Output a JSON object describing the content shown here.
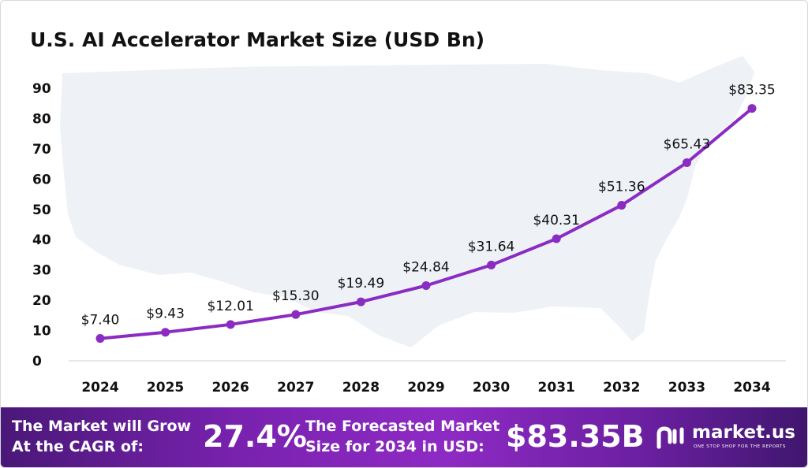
{
  "chart_data": {
    "type": "line",
    "title": "U.S. AI Accelerator Market Size (USD Bn)",
    "xlabel": "",
    "ylabel": "",
    "x": [
      "2024",
      "2025",
      "2026",
      "2027",
      "2028",
      "2029",
      "2030",
      "2031",
      "2032",
      "2033",
      "2034"
    ],
    "values": [
      7.4,
      9.43,
      12.01,
      15.3,
      19.49,
      24.84,
      31.64,
      40.31,
      51.36,
      65.43,
      83.35
    ],
    "data_labels": [
      "$7.40",
      "$9.43",
      "$12.01",
      "$15.30",
      "$19.49",
      "$24.84",
      "$31.64",
      "$40.31",
      "$51.36",
      "$65.43",
      "$83.35"
    ],
    "yticks": [
      "0",
      "10",
      "20",
      "30",
      "40",
      "50",
      "60",
      "70",
      "80",
      "90"
    ],
    "ylim": [
      0,
      90
    ],
    "grid": false,
    "legend": "none",
    "line_color": "#8a2bc2",
    "background_image": "us-map-silhouette"
  },
  "banner": {
    "grow_line1": "The Market will Grow",
    "grow_line2": "At the CAGR of:",
    "cagr": "27.4%",
    "forecast_line1": "The Forecasted Market",
    "forecast_line2": "Size for 2034 in USD:",
    "forecast_value": "$83.35B",
    "brand": "market.us",
    "tagline": "ONE STOP SHOP FOR THE REPORTS",
    "logo_icon": "market-us-logo-icon",
    "colors": {
      "start": "#4a1878",
      "mid": "#8e2ac4",
      "end": "#3f166e"
    }
  }
}
